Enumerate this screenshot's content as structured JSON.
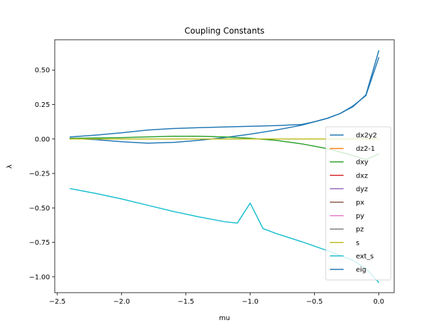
{
  "chart_data": {
    "type": "line",
    "title": "Coupling Constants",
    "xlabel": "mu",
    "ylabel": "λ",
    "xlim": [
      -2.52,
      0.12
    ],
    "ylim": [
      -1.115,
      0.72
    ],
    "x_ticks": [
      -2.5,
      -2.0,
      -1.5,
      -1.0,
      -0.5,
      0.0
    ],
    "x_tick_labels": [
      "−2.5",
      "−2.0",
      "−1.5",
      "−1.0",
      "−0.5",
      "0.0"
    ],
    "y_ticks": [
      0.5,
      0.25,
      0.0,
      -0.25,
      -0.5,
      -0.75,
      -1.0
    ],
    "y_tick_labels": [
      "0.50",
      "0.25",
      "0.00",
      "−0.25",
      "−0.50",
      "−0.75",
      "−1.00"
    ],
    "legend_position": "lower right",
    "series": [
      {
        "name": "dx2y2",
        "color": "#1f77b4",
        "x": [
          -2.4,
          -2.2,
          -2.0,
          -1.8,
          -1.6,
          -1.4,
          -1.2,
          -1.0,
          -0.8,
          -0.6,
          -0.5,
          -0.4,
          -0.3,
          -0.2,
          -0.1,
          0.0
        ],
        "y": [
          0.005,
          -0.005,
          -0.02,
          -0.03,
          -0.025,
          -0.01,
          0.01,
          0.035,
          0.065,
          0.1,
          0.125,
          0.15,
          0.185,
          0.24,
          0.315,
          0.59
        ]
      },
      {
        "name": "dz2-1",
        "color": "#ff7f0e",
        "x": [
          -2.4,
          -2.0,
          -1.5,
          -1.0,
          -0.5,
          0.0
        ],
        "y": [
          0.0,
          0.0,
          0.0,
          0.0,
          0.0,
          0.0
        ]
      },
      {
        "name": "dxy",
        "color": "#2ca02c",
        "x": [
          -2.4,
          -2.0,
          -1.6,
          -1.4,
          -1.2,
          -1.0,
          -0.8,
          -0.6,
          -0.4,
          -0.2,
          -0.1,
          0.0
        ],
        "y": [
          0.005,
          0.01,
          0.02,
          0.02,
          0.015,
          0.005,
          -0.01,
          -0.035,
          -0.07,
          -0.12,
          -0.15,
          -0.11
        ]
      },
      {
        "name": "dxz",
        "color": "#d62728",
        "x": [
          -2.4,
          -2.0,
          -1.5,
          -1.0,
          -0.5,
          0.0
        ],
        "y": [
          0.0,
          0.0,
          0.0,
          0.0,
          0.0,
          0.0
        ]
      },
      {
        "name": "dyz",
        "color": "#9467bd",
        "x": [
          -2.4,
          -2.0,
          -1.5,
          -1.0,
          -0.5,
          0.0
        ],
        "y": [
          0.0,
          0.0,
          0.0,
          0.0,
          0.0,
          0.0
        ]
      },
      {
        "name": "px",
        "color": "#8c564b",
        "x": [
          -2.4,
          -2.0,
          -1.5,
          -1.0,
          -0.5,
          0.0
        ],
        "y": [
          0.0,
          0.0,
          0.0,
          0.0,
          0.0,
          0.0
        ]
      },
      {
        "name": "py",
        "color": "#e377c2",
        "x": [
          -2.4,
          -2.0,
          -1.5,
          -1.0,
          -0.5,
          0.0
        ],
        "y": [
          0.0,
          0.0,
          0.0,
          0.0,
          0.0,
          0.0
        ]
      },
      {
        "name": "pz",
        "color": "#7f7f7f",
        "x": [
          -2.4,
          -2.0,
          -1.5,
          -1.0,
          -0.5,
          0.0
        ],
        "y": [
          0.0,
          0.0,
          0.0,
          0.0,
          0.0,
          0.0
        ]
      },
      {
        "name": "s",
        "color": "#bcbd22",
        "x": [
          -2.4,
          -2.0,
          -1.5,
          -1.0,
          -0.5,
          0.0
        ],
        "y": [
          0.0,
          0.0,
          0.0,
          0.0,
          0.0,
          0.0
        ]
      },
      {
        "name": "ext_s",
        "color": "#17becf",
        "x": [
          -2.4,
          -2.2,
          -2.0,
          -1.8,
          -1.6,
          -1.4,
          -1.2,
          -1.1,
          -1.0,
          -0.9,
          -0.8,
          -0.6,
          -0.4,
          -0.2,
          -0.1,
          0.0
        ],
        "y": [
          -0.36,
          -0.395,
          -0.435,
          -0.48,
          -0.525,
          -0.565,
          -0.6,
          -0.61,
          -0.465,
          -0.65,
          -0.685,
          -0.745,
          -0.81,
          -0.88,
          -0.94,
          -1.04
        ]
      },
      {
        "name": "eig",
        "color": "#1f77b4",
        "x": [
          -2.4,
          -2.2,
          -2.0,
          -1.8,
          -1.6,
          -1.4,
          -1.2,
          -1.0,
          -0.8,
          -0.6,
          -0.5,
          -0.4,
          -0.3,
          -0.2,
          -0.1,
          0.0
        ],
        "y": [
          0.015,
          0.028,
          0.045,
          0.065,
          0.076,
          0.082,
          0.087,
          0.092,
          0.097,
          0.105,
          0.125,
          0.15,
          0.185,
          0.235,
          0.32,
          0.64
        ]
      }
    ]
  }
}
